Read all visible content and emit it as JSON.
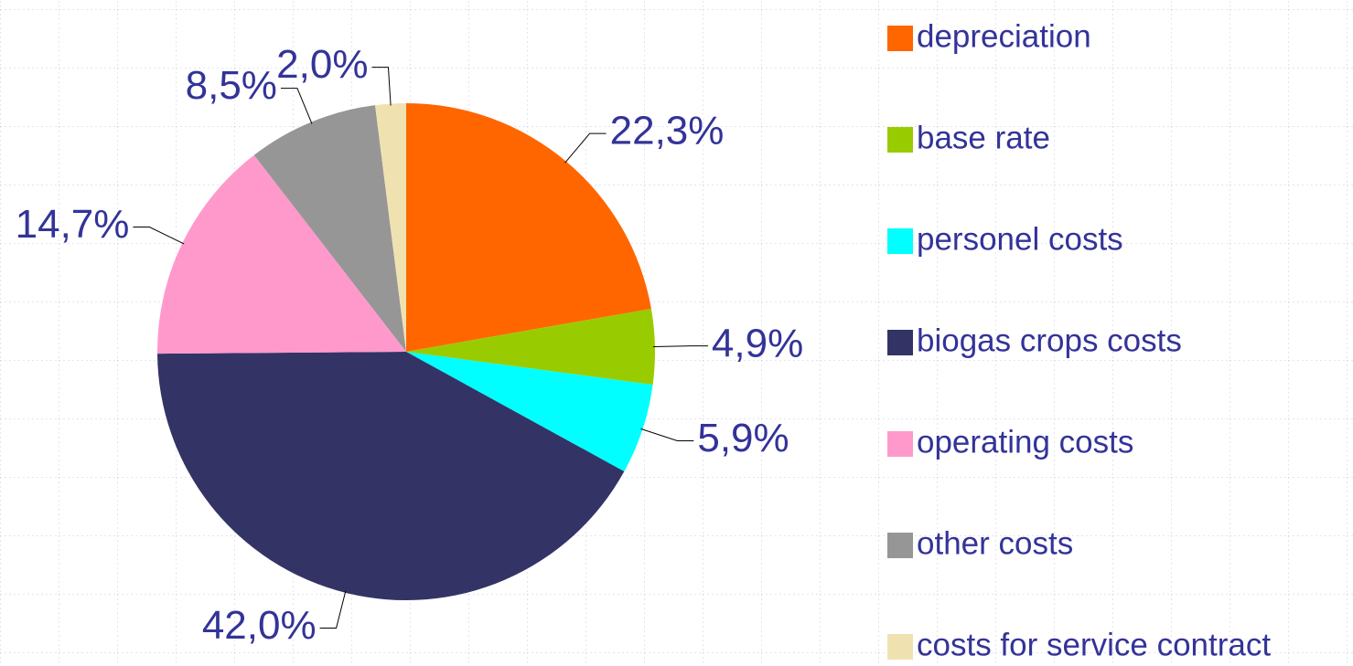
{
  "chart_data": {
    "type": "pie",
    "categories": [
      "depreciation",
      "base rate",
      "personel costs",
      "biogas crops costs",
      "operating costs",
      "other costs",
      "costs for service contract"
    ],
    "values": [
      22.3,
      4.9,
      5.9,
      42.0,
      14.7,
      8.5,
      2.0
    ],
    "value_labels": [
      "22,3%",
      "4,9%",
      "5,9%",
      "42,0%",
      "14,7%",
      "8,5%",
      "2,0%"
    ],
    "colors": [
      "#ff6600",
      "#99cc00",
      "#00ffff",
      "#333366",
      "#ff99cc",
      "#969696",
      "#f0e2b0"
    ],
    "legend": "right"
  }
}
